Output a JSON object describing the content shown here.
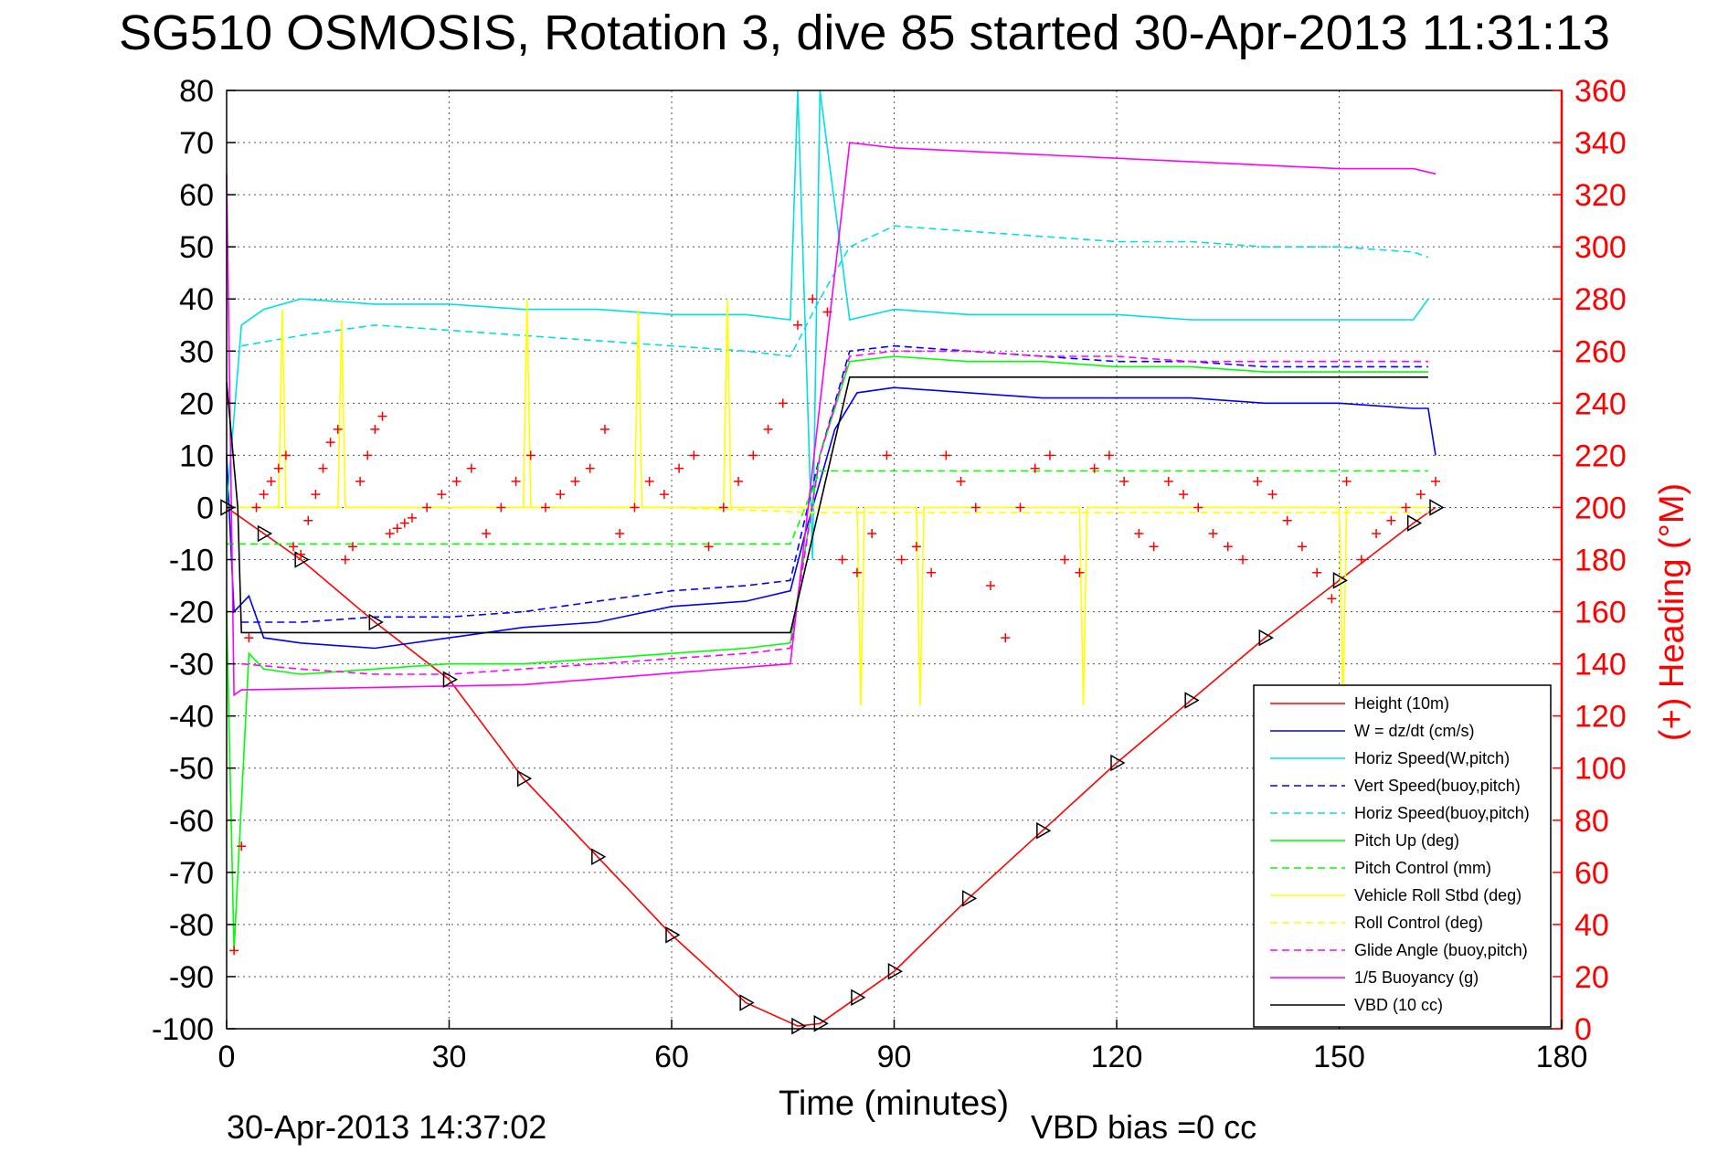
{
  "chart_data": {
    "type": "line",
    "title": "SG510 OSMOSIS, Rotation 3, dive 85 started 30-Apr-2013 11:31:13",
    "xlabel": "Time (minutes)",
    "ylabel_right": "(+) Heading (°M)",
    "xlim": [
      0,
      180
    ],
    "ylim": [
      -100,
      80
    ],
    "ylim_right": [
      0,
      360
    ],
    "x_ticks": [
      "0",
      "30",
      "60",
      "90",
      "120",
      "150",
      "180"
    ],
    "y_ticks": [
      "80",
      "70",
      "60",
      "50",
      "40",
      "30",
      "20",
      "10",
      "0",
      "-10",
      "-20",
      "-30",
      "-40",
      "-50",
      "-60",
      "-70",
      "-80",
      "-90",
      "-100"
    ],
    "y_ticks_right": [
      "360",
      "340",
      "320",
      "300",
      "280",
      "260",
      "240",
      "220",
      "200",
      "180",
      "160",
      "140",
      "120",
      "100",
      "80",
      "60",
      "40",
      "20",
      "0"
    ],
    "grid": true,
    "legend_position": "bottom-right",
    "footer_left": "30-Apr-2013 14:37:02",
    "footer_right": "VBD bias =0 cc",
    "series": [
      {
        "name": "Height (10m)",
        "color": "#ff0000",
        "style": "solid",
        "x": [
          0,
          5,
          10,
          20,
          30,
          40,
          50,
          60,
          70,
          77,
          80,
          85,
          90,
          100,
          110,
          120,
          130,
          140,
          150,
          160,
          163
        ],
        "y": [
          0,
          -5,
          -10,
          -22,
          -33,
          -52,
          -67,
          -82,
          -95,
          -99.5,
          -99,
          -94,
          -89,
          -75,
          -62,
          -49,
          -37,
          -25,
          -14,
          -3,
          0
        ]
      },
      {
        "name": "W = dz/dt (cm/s)",
        "color": "#0000ff",
        "style": "solid",
        "x": [
          0,
          1,
          3,
          5,
          10,
          20,
          30,
          40,
          50,
          60,
          70,
          76,
          78,
          82,
          85,
          90,
          100,
          110,
          120,
          130,
          140,
          150,
          160,
          162,
          163
        ],
        "y": [
          10,
          -20,
          -17,
          -25,
          -26,
          -27,
          -25,
          -23,
          -22,
          -19,
          -18,
          -16,
          -5,
          15,
          22,
          23,
          22,
          21,
          21,
          21,
          20,
          20,
          19,
          19,
          10
        ]
      },
      {
        "name": "Horiz Speed(W,pitch)",
        "color": "#00e0e0",
        "style": "solid",
        "x": [
          0,
          2,
          5,
          10,
          20,
          30,
          40,
          50,
          60,
          70,
          76,
          77,
          79,
          80,
          84,
          90,
          100,
          110,
          120,
          130,
          140,
          150,
          160,
          162
        ],
        "y": [
          0,
          35,
          38,
          40,
          39,
          39,
          38,
          38,
          37,
          37,
          36,
          80,
          -10,
          80,
          36,
          38,
          37,
          37,
          37,
          36,
          36,
          36,
          36,
          40
        ]
      },
      {
        "name": "Vert Speed(buoy,pitch)",
        "color": "#0000ff",
        "style": "dashed",
        "x": [
          2,
          10,
          20,
          30,
          40,
          50,
          60,
          70,
          76,
          80,
          84,
          90,
          100,
          110,
          120,
          130,
          140,
          150,
          160,
          162
        ],
        "y": [
          -22,
          -22,
          -21,
          -21,
          -20,
          -18,
          -16,
          -15,
          -14,
          10,
          30,
          31,
          30,
          29,
          28,
          28,
          27,
          27,
          27,
          27
        ]
      },
      {
        "name": "Horiz Speed(buoy,pitch)",
        "color": "#00e0e0",
        "style": "dashed",
        "x": [
          2,
          10,
          20,
          30,
          40,
          50,
          60,
          70,
          76,
          80,
          84,
          90,
          100,
          110,
          120,
          130,
          140,
          150,
          160,
          162
        ],
        "y": [
          31,
          33,
          35,
          34,
          33,
          32,
          31,
          30,
          29,
          40,
          50,
          54,
          53,
          52,
          51,
          51,
          50,
          50,
          49,
          48
        ]
      },
      {
        "name": "Pitch Up (deg)",
        "color": "#00ff00",
        "style": "solid",
        "x": [
          0,
          1,
          3,
          5,
          10,
          20,
          30,
          40,
          50,
          60,
          70,
          76,
          80,
          84,
          90,
          100,
          110,
          120,
          130,
          140,
          150,
          160,
          162
        ],
        "y": [
          -20,
          -85,
          -28,
          -31,
          -32,
          -31,
          -30,
          -30,
          -29,
          -28,
          -27,
          -26,
          10,
          28,
          29,
          28,
          28,
          27,
          27,
          26,
          26,
          26,
          26
        ]
      },
      {
        "name": "Pitch Control (mm)",
        "color": "#00ff00",
        "style": "dashed",
        "x": [
          0,
          5,
          10,
          40,
          76,
          80,
          85,
          100,
          120,
          140,
          160,
          162
        ],
        "y": [
          -7,
          -7,
          -7,
          -7,
          -7,
          7,
          7,
          7,
          7,
          7,
          7,
          7
        ]
      },
      {
        "name": "Vehicle Roll Stbd (deg)",
        "color": "#ffff00",
        "style": "solid",
        "x": [
          0,
          7,
          7.5,
          8,
          15,
          15.5,
          16,
          40,
          40.5,
          41,
          55,
          55.5,
          56,
          67,
          67.5,
          68,
          80,
          85,
          85.5,
          86,
          93,
          93.5,
          94,
          115,
          115.5,
          116,
          150,
          150.5,
          151,
          162
        ],
        "y": [
          0,
          0,
          38,
          0,
          0,
          36,
          0,
          0,
          40,
          0,
          0,
          38,
          0,
          0,
          40,
          0,
          0,
          0,
          -38,
          0,
          0,
          -38,
          0,
          0,
          -38,
          0,
          0,
          -38,
          0,
          0
        ]
      },
      {
        "name": "Roll Control (deg)",
        "color": "#ffff00",
        "style": "dashed",
        "x": [
          0,
          20,
          40,
          60,
          80,
          100,
          120,
          140,
          162
        ],
        "y": [
          0,
          0,
          0,
          0,
          -1,
          -1,
          -1,
          -1,
          -1
        ]
      },
      {
        "name": "Glide Angle (buoy,pitch)",
        "color": "#ff00ff",
        "style": "dashed",
        "x": [
          2,
          10,
          20,
          30,
          40,
          50,
          60,
          70,
          76,
          80,
          84,
          90,
          100,
          110,
          120,
          130,
          140,
          150,
          160,
          162
        ],
        "y": [
          -30,
          -31,
          -32,
          -32,
          -31,
          -30,
          -29,
          -28,
          -27,
          10,
          29,
          30,
          30,
          29,
          29,
          28,
          28,
          28,
          28,
          28
        ]
      },
      {
        "name": "1/5 Buoyancy (g)",
        "color": "#ff00ff",
        "style": "solid",
        "x": [
          0,
          1,
          2,
          40,
          76,
          84,
          90,
          120,
          150,
          160,
          163
        ],
        "y": [
          64,
          -36,
          -35,
          -34,
          -30,
          70,
          69,
          67,
          65,
          65,
          64
        ]
      },
      {
        "name": "VBD (10 cc)",
        "color": "#000000",
        "style": "solid",
        "x": [
          0,
          1.5,
          2,
          76,
          84,
          162
        ],
        "y": [
          24,
          0,
          -24,
          -24,
          25,
          25
        ]
      }
    ],
    "heading_markers": {
      "name": "(+) Heading",
      "color": "#ff0000",
      "axis": "right",
      "x": [
        1,
        2,
        3,
        4,
        5,
        6,
        7,
        8,
        9,
        10,
        11,
        12,
        13,
        14,
        15,
        16,
        17,
        18,
        19,
        20,
        21,
        22,
        23,
        24,
        25,
        27,
        29,
        31,
        33,
        35,
        37,
        39,
        41,
        43,
        45,
        47,
        49,
        51,
        53,
        55,
        57,
        59,
        61,
        63,
        65,
        67,
        69,
        71,
        73,
        75,
        77,
        79,
        81,
        83,
        85,
        87,
        89,
        91,
        93,
        95,
        97,
        99,
        101,
        103,
        105,
        107,
        109,
        111,
        113,
        115,
        117,
        119,
        121,
        123,
        125,
        127,
        129,
        131,
        133,
        135,
        137,
        139,
        141,
        143,
        145,
        147,
        149,
        151,
        153,
        155,
        157,
        159,
        161,
        163
      ],
      "y": [
        30,
        70,
        150,
        200,
        205,
        210,
        215,
        220,
        185,
        182,
        195,
        205,
        215,
        225,
        230,
        180,
        185,
        210,
        220,
        230,
        235,
        190,
        192,
        194,
        196,
        200,
        205,
        210,
        215,
        190,
        200,
        210,
        220,
        200,
        205,
        210,
        215,
        230,
        190,
        200,
        210,
        205,
        215,
        220,
        185,
        200,
        210,
        220,
        230,
        240,
        270,
        280,
        275,
        180,
        175,
        190,
        220,
        180,
        185,
        175,
        220,
        210,
        200,
        170,
        150,
        200,
        215,
        220,
        180,
        175,
        215,
        220,
        210,
        190,
        185,
        210,
        205,
        200,
        190,
        185,
        180,
        210,
        205,
        195,
        185,
        175,
        165,
        210,
        180,
        190,
        195,
        200,
        205,
        210
      ]
    }
  }
}
